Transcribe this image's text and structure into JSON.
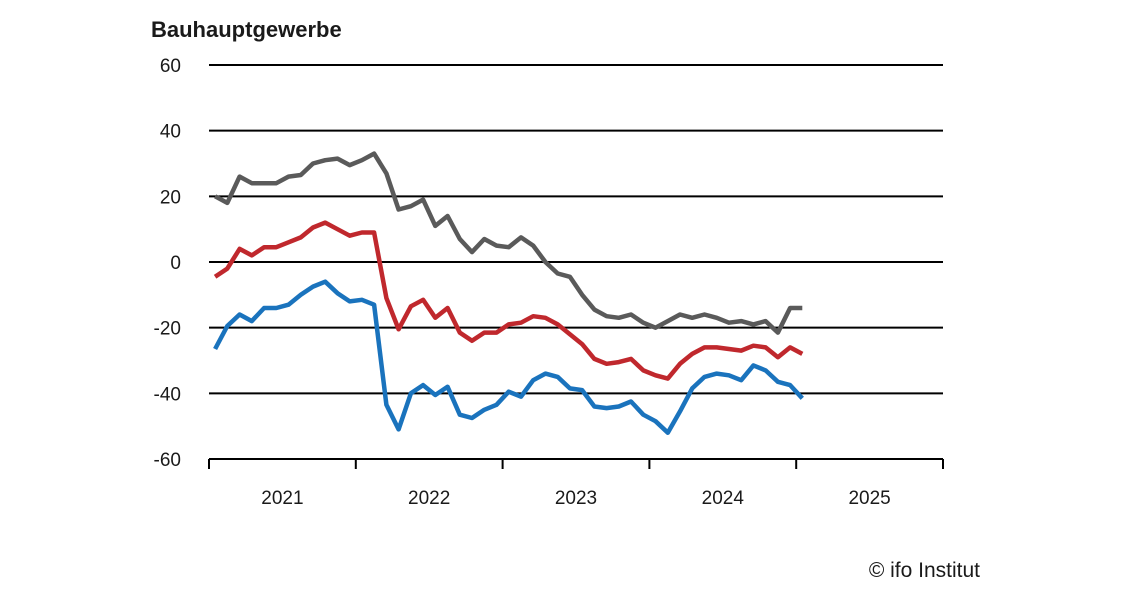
{
  "chart_data": {
    "type": "line",
    "title": "Bauhauptgewerbe",
    "xlabel": "",
    "ylabel": "",
    "ylim": [
      -60,
      60
    ],
    "yticks": [
      60,
      40,
      20,
      0,
      -20,
      -40,
      -60
    ],
    "ytick_labels": [
      "60",
      "40",
      "20",
      "0",
      "-20",
      "-40",
      "-60"
    ],
    "xlim": [
      "2021-01",
      "2025-12"
    ],
    "x_categories": [
      "2021",
      "2022",
      "2023",
      "2024",
      "2025"
    ],
    "grid": "horizontal",
    "x": [
      "2021-01",
      "2021-02",
      "2021-03",
      "2021-04",
      "2021-05",
      "2021-06",
      "2021-07",
      "2021-08",
      "2021-09",
      "2021-10",
      "2021-11",
      "2021-12",
      "2022-01",
      "2022-02",
      "2022-03",
      "2022-04",
      "2022-05",
      "2022-06",
      "2022-07",
      "2022-08",
      "2022-09",
      "2022-10",
      "2022-11",
      "2022-12",
      "2023-01",
      "2023-02",
      "2023-03",
      "2023-04",
      "2023-05",
      "2023-06",
      "2023-07",
      "2023-08",
      "2023-09",
      "2023-10",
      "2023-11",
      "2023-12",
      "2024-01",
      "2024-02",
      "2024-03",
      "2024-04",
      "2024-05",
      "2024-06",
      "2024-07",
      "2024-08",
      "2024-09",
      "2024-10",
      "2024-11",
      "2024-12",
      "2025-01"
    ],
    "series": [
      {
        "color": "#5a5a5a",
        "values": [
          20,
          18,
          26,
          24,
          24,
          24,
          26,
          26.5,
          30,
          31,
          31.5,
          29.5,
          31,
          33,
          27,
          16,
          17,
          19,
          11,
          14,
          7,
          3,
          7,
          5,
          4.5,
          7.5,
          5,
          0,
          -3.5,
          -4.5,
          -10,
          -14.5,
          -16.5,
          -17,
          -16,
          -18.5,
          -20,
          -18,
          -16,
          -17,
          -16,
          -17,
          -18.5,
          -18,
          -19,
          -18,
          -21.5,
          -14,
          -14
        ]
      },
      {
        "color": "#c0282d",
        "values": [
          -4.5,
          -2,
          4,
          2,
          4.5,
          4.5,
          6,
          7.5,
          10.5,
          12,
          10,
          8,
          9,
          9,
          -11,
          -20.5,
          -13.5,
          -11.5,
          -17,
          -14,
          -21.5,
          -24,
          -21.5,
          -21.5,
          -19,
          -18.5,
          -16.5,
          -17,
          -19,
          -22,
          -25,
          -29.5,
          -31,
          -30.5,
          -29.5,
          -33,
          -34.5,
          -35.5,
          -31,
          -28,
          -26,
          -26,
          -26.5,
          -27,
          -25.5,
          -26,
          -29,
          -26,
          -28
        ]
      },
      {
        "color": "#1a73bd",
        "values": [
          -26.5,
          -19.5,
          -16,
          -18,
          -14,
          -14,
          -13,
          -10,
          -7.5,
          -6,
          -9.5,
          -12,
          -11.5,
          -13,
          -43.5,
          -51,
          -40,
          -37.5,
          -40.5,
          -38,
          -46.5,
          -47.5,
          -45,
          -43.5,
          -39.5,
          -41,
          -36,
          -34,
          -35,
          -38.5,
          -39,
          -44,
          -44.5,
          -44,
          -42.5,
          -46.5,
          -48.5,
          -52,
          -45.5,
          -38.5,
          -35,
          -34,
          -34.5,
          -36,
          -31.5,
          -33,
          -36.5,
          -37.5,
          -41.5
        ]
      }
    ],
    "source": "© ifo Institut"
  }
}
